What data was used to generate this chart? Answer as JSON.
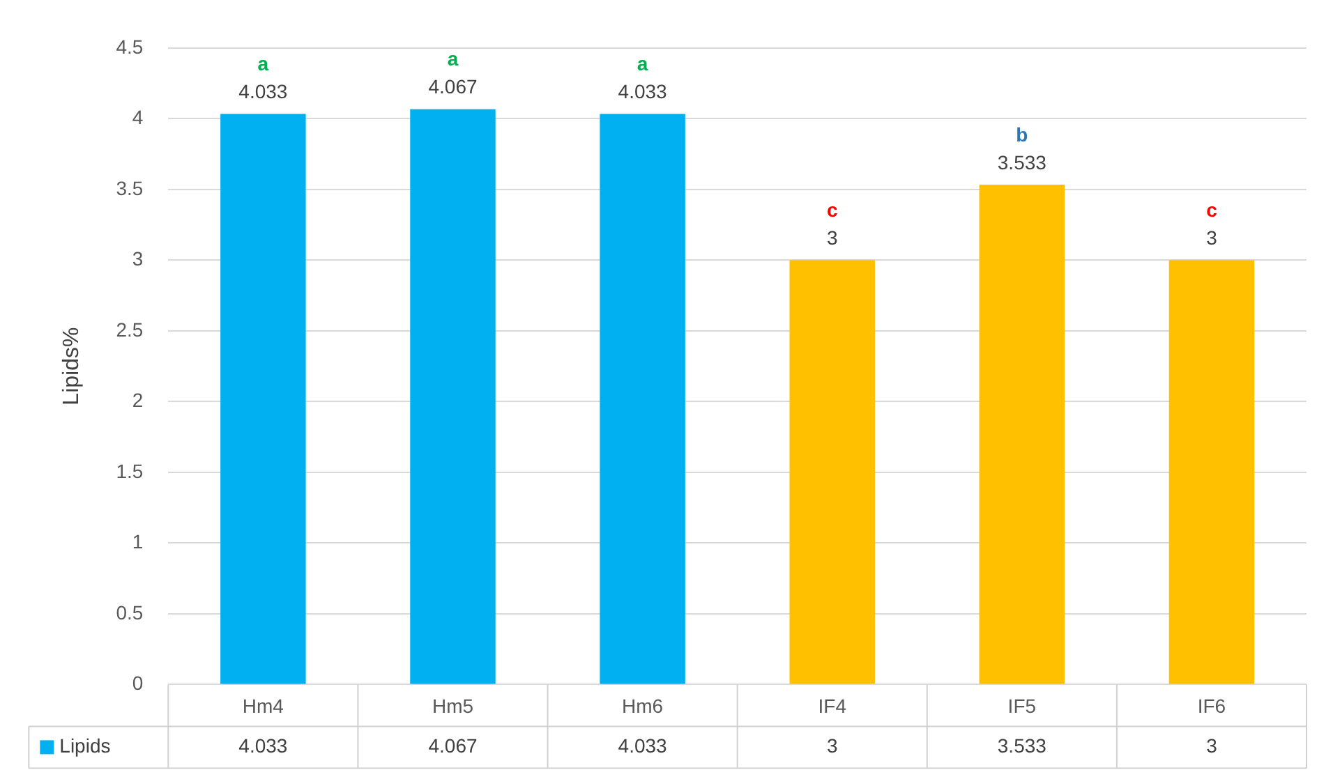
{
  "chart_data": {
    "type": "bar",
    "ylabel": "Lipids%",
    "categories": [
      "Hm4",
      "Hm5",
      "Hm6",
      "IF4",
      "IF5",
      "IF6"
    ],
    "series": [
      {
        "name": "Lipids",
        "colors": [
          "#00b0f0",
          "#00b0f0",
          "#00b0f0",
          "#ffc000",
          "#ffc000",
          "#ffc000"
        ],
        "color": "#00b0f0",
        "values": [
          4.033,
          4.067,
          4.033,
          3,
          3.533,
          3
        ],
        "value_labels": [
          "4.033",
          "4.067",
          "4.033",
          "3",
          "3.533",
          "3"
        ]
      }
    ],
    "ylim": [
      0,
      4.5
    ],
    "yticks": [
      0,
      0.5,
      1,
      1.5,
      2,
      2.5,
      3,
      3.5,
      4,
      4.5
    ],
    "grid": "y",
    "legend": "bottom",
    "annotations": [
      {
        "text": "a",
        "x": "Hm4",
        "y": 4.033
      },
      {
        "text": "a",
        "x": "Hm5",
        "y": 4.067
      },
      {
        "text": "a",
        "x": "Hm6",
        "y": 4.033
      },
      {
        "text": "c",
        "x": "IF4",
        "y": 3
      },
      {
        "text": "b",
        "x": "IF5",
        "y": 3.533
      },
      {
        "text": "c",
        "x": "IF6",
        "y": 3
      },
      "4.033",
      "4.067",
      "4.033",
      "3",
      "3.533",
      "3"
    ]
  }
}
